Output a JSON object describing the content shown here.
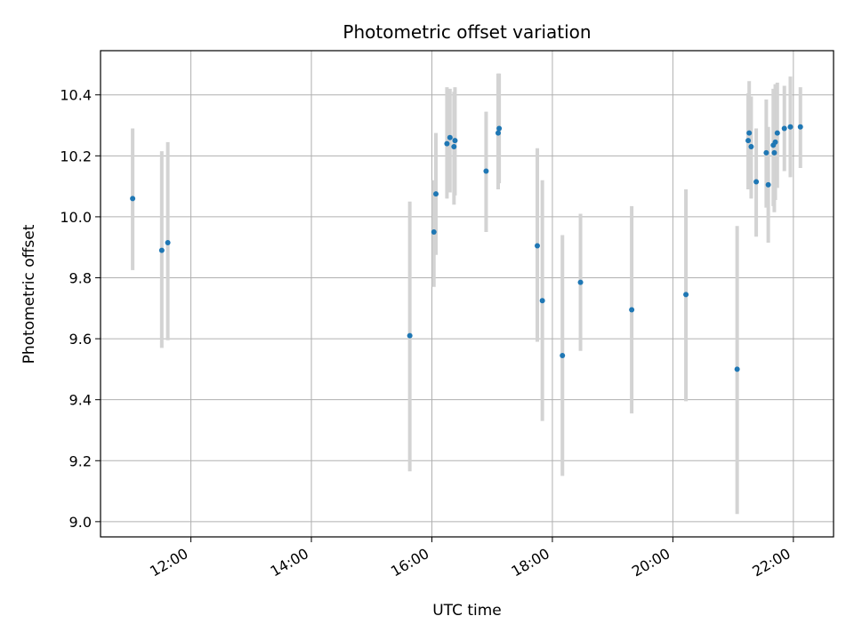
{
  "chart_data": {
    "type": "scatter",
    "title": "Photometric offset variation",
    "xlabel": "UTC time",
    "ylabel": "Photometric offset",
    "xlim": [
      "10:30",
      "22:40"
    ],
    "ylim": [
      8.95,
      10.545
    ],
    "xticks": [
      "12:00",
      "14:00",
      "16:00",
      "18:00",
      "20:00",
      "22:00"
    ],
    "yticks": [
      "9.0",
      "9.2",
      "9.4",
      "9.6",
      "9.8",
      "10.0",
      "10.2",
      "10.4"
    ],
    "grid": true,
    "colors": {
      "point": "#1f77b4",
      "errorbar": "#d3d3d3",
      "grid": "#b0b0b0"
    },
    "points": [
      {
        "time": "11:02",
        "value": 10.06,
        "err_low": 9.825,
        "err_high": 10.29
      },
      {
        "time": "11:31",
        "value": 9.89,
        "err_low": 9.57,
        "err_high": 10.215
      },
      {
        "time": "11:37",
        "value": 9.915,
        "err_low": 9.595,
        "err_high": 10.245
      },
      {
        "time": "15:38",
        "value": 9.61,
        "err_low": 9.165,
        "err_high": 10.05
      },
      {
        "time": "16:02",
        "value": 9.95,
        "err_low": 9.77,
        "err_high": 10.12
      },
      {
        "time": "16:04",
        "value": 10.075,
        "err_low": 9.875,
        "err_high": 10.275
      },
      {
        "time": "16:15",
        "value": 10.24,
        "err_low": 10.06,
        "err_high": 10.425
      },
      {
        "time": "16:18",
        "value": 10.26,
        "err_low": 10.08,
        "err_high": 10.42
      },
      {
        "time": "16:22",
        "value": 10.23,
        "err_low": 10.04,
        "err_high": 10.41
      },
      {
        "time": "16:23",
        "value": 10.25,
        "err_low": 10.07,
        "err_high": 10.425
      },
      {
        "time": "16:54",
        "value": 10.15,
        "err_low": 9.95,
        "err_high": 10.345
      },
      {
        "time": "17:06",
        "value": 10.275,
        "err_low": 10.09,
        "err_high": 10.47
      },
      {
        "time": "17:07",
        "value": 10.29,
        "err_low": 10.11,
        "err_high": 10.47
      },
      {
        "time": "17:45",
        "value": 9.905,
        "err_low": 9.59,
        "err_high": 10.225
      },
      {
        "time": "17:50",
        "value": 9.725,
        "err_low": 9.33,
        "err_high": 10.12
      },
      {
        "time": "18:10",
        "value": 9.545,
        "err_low": 9.15,
        "err_high": 9.94
      },
      {
        "time": "18:28",
        "value": 9.785,
        "err_low": 9.56,
        "err_high": 10.01
      },
      {
        "time": "19:19",
        "value": 9.695,
        "err_low": 9.355,
        "err_high": 10.035
      },
      {
        "time": "20:13",
        "value": 9.745,
        "err_low": 9.395,
        "err_high": 10.09
      },
      {
        "time": "21:04",
        "value": 9.5,
        "err_low": 9.025,
        "err_high": 9.97
      },
      {
        "time": "21:15",
        "value": 10.25,
        "err_low": 10.09,
        "err_high": 10.405
      },
      {
        "time": "21:16",
        "value": 10.275,
        "err_low": 10.105,
        "err_high": 10.445
      },
      {
        "time": "21:18",
        "value": 10.23,
        "err_low": 10.06,
        "err_high": 10.395
      },
      {
        "time": "21:23",
        "value": 10.115,
        "err_low": 9.935,
        "err_high": 10.29
      },
      {
        "time": "21:33",
        "value": 10.21,
        "err_low": 10.03,
        "err_high": 10.385
      },
      {
        "time": "21:35",
        "value": 10.105,
        "err_low": 9.915,
        "err_high": 10.295
      },
      {
        "time": "21:40",
        "value": 10.235,
        "err_low": 10.035,
        "err_high": 10.42
      },
      {
        "time": "21:41",
        "value": 10.21,
        "err_low": 10.015,
        "err_high": 10.405
      },
      {
        "time": "21:42",
        "value": 10.245,
        "err_low": 10.055,
        "err_high": 10.435
      },
      {
        "time": "21:44",
        "value": 10.275,
        "err_low": 10.095,
        "err_high": 10.44
      },
      {
        "time": "21:51",
        "value": 10.29,
        "err_low": 10.15,
        "err_high": 10.43
      },
      {
        "time": "21:57",
        "value": 10.295,
        "err_low": 10.13,
        "err_high": 10.46
      },
      {
        "time": "22:07",
        "value": 10.295,
        "err_low": 10.16,
        "err_high": 10.425
      }
    ]
  }
}
